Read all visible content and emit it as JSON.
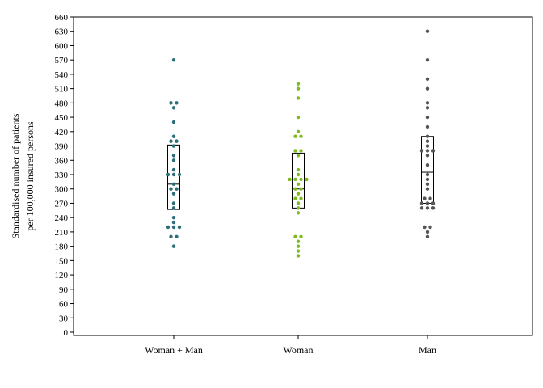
{
  "chart_data": {
    "type": "scatter",
    "subtype": "dot-strip with box",
    "ylabel_line1": "Standardised number of patients",
    "ylabel_line2": "per 100,000 insured persons",
    "ylim": [
      0,
      660
    ],
    "yticks": [
      0,
      30,
      60,
      90,
      120,
      150,
      180,
      210,
      240,
      270,
      300,
      330,
      360,
      390,
      420,
      450,
      480,
      510,
      540,
      570,
      600,
      630,
      660
    ],
    "grid": false,
    "categories": [
      "Woman + Man",
      "Woman",
      "Man"
    ],
    "series": [
      {
        "category": "Woman + Man",
        "color": "#2e6e78",
        "box": {
          "q1": 257,
          "median": 310,
          "q3": 392
        },
        "points": [
          570,
          480,
          480,
          470,
          440,
          410,
          400,
          400,
          390,
          370,
          360,
          340,
          330,
          330,
          330,
          310,
          300,
          300,
          290,
          270,
          260,
          240,
          230,
          220,
          220,
          220,
          200,
          200,
          180
        ]
      },
      {
        "category": "Woman",
        "color": "#7dbb1e",
        "box": {
          "q1": 260,
          "median": 300,
          "q3": 375
        },
        "points": [
          520,
          510,
          490,
          450,
          420,
          410,
          410,
          380,
          380,
          370,
          340,
          330,
          320,
          320,
          320,
          320,
          310,
          300,
          300,
          290,
          280,
          280,
          270,
          260,
          250,
          200,
          200,
          190,
          180,
          170,
          160
        ]
      },
      {
        "category": "Man",
        "color": "#555555",
        "box": {
          "q1": 270,
          "median": 335,
          "q3": 410
        },
        "points": [
          630,
          570,
          530,
          510,
          480,
          470,
          450,
          430,
          410,
          400,
          390,
          380,
          380,
          380,
          370,
          350,
          330,
          320,
          310,
          300,
          280,
          280,
          270,
          270,
          270,
          260,
          260,
          260,
          220,
          220,
          210,
          200
        ]
      }
    ]
  }
}
